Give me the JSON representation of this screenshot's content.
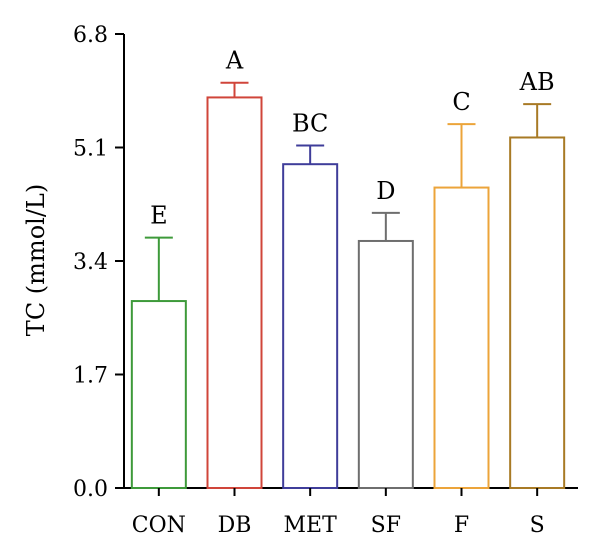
{
  "chart_data": {
    "type": "bar",
    "title": "",
    "xlabel": "",
    "ylabel": "TC (mmol/L)",
    "ylim": [
      0,
      6.8
    ],
    "yticks": [
      "0.0",
      "1.7",
      "3.4",
      "5.1",
      "6.8"
    ],
    "grid": false,
    "legend": "none",
    "categories": [
      "CON",
      "DB",
      "MET",
      "SF",
      "F",
      "S"
    ],
    "values": [
      2.8,
      5.85,
      4.85,
      3.7,
      4.5,
      5.25
    ],
    "errors": [
      0.95,
      0.22,
      0.28,
      0.42,
      0.95,
      0.5
    ],
    "significance": [
      "E",
      "A",
      "BC",
      "D",
      "C",
      "AB"
    ],
    "colors": [
      "#3e9a3a",
      "#d0453a",
      "#3f3d9a",
      "#6e6e6e",
      "#eca43a",
      "#a87a25"
    ]
  }
}
